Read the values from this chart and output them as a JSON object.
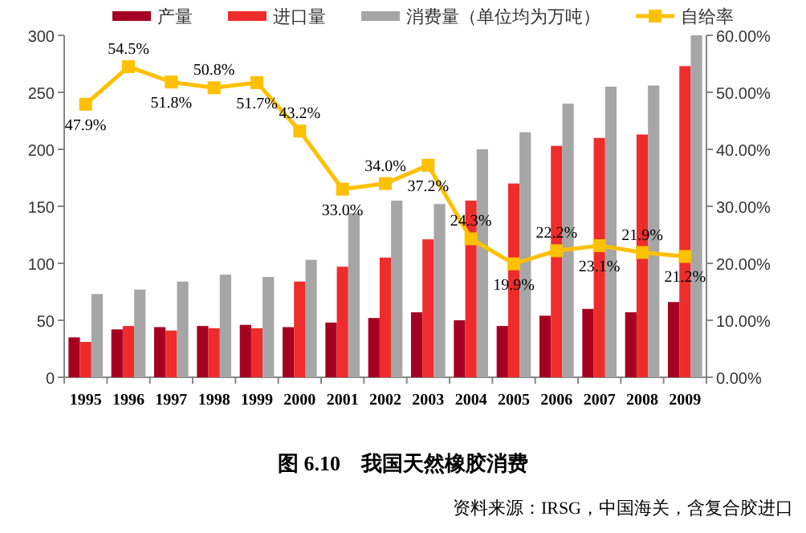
{
  "chart_data": {
    "type": "bar",
    "title": "图 6.10　我国天然橡胶消费",
    "annotations": [
      "资料来源：IRSG，中国海关，含复合胶进口"
    ],
    "categories": [
      "1995",
      "1996",
      "1997",
      "1998",
      "1999",
      "2000",
      "2001",
      "2002",
      "2003",
      "2004",
      "2005",
      "2006",
      "2007",
      "2008",
      "2009"
    ],
    "series": [
      {
        "name": "产量",
        "color": "#a50021",
        "values": [
          35,
          42,
          44,
          45,
          46,
          44,
          48,
          52,
          57,
          50,
          45,
          54,
          60,
          57,
          66
        ]
      },
      {
        "name": "进口量",
        "color": "#ee2c2c",
        "values": [
          31,
          45,
          41,
          43,
          43,
          84,
          97,
          105,
          121,
          155,
          170,
          203,
          210,
          213,
          273
        ]
      },
      {
        "name": "消费量（单位均为万吨）",
        "color": "#a6a6a6",
        "values": [
          73,
          77,
          84,
          90,
          88,
          103,
          144,
          155,
          152,
          200,
          215,
          240,
          255,
          256,
          300
        ]
      },
      {
        "name": "自给率",
        "type": "line",
        "axis": "y2",
        "color": "#ffc000",
        "marker": "square",
        "values": [
          47.9,
          54.5,
          51.8,
          50.8,
          51.7,
          43.2,
          33.0,
          34.0,
          37.2,
          24.3,
          19.9,
          22.2,
          23.1,
          21.9,
          21.2
        ],
        "value_labels": [
          "47.9%",
          "54.5%",
          "51.8%",
          "50.8%",
          "51.7%",
          "43.2%",
          "33.0%",
          "34.0%",
          "37.2%",
          "24.3%",
          "19.9%",
          "22.2%",
          "23.1%",
          "21.9%",
          "21.2%"
        ]
      }
    ],
    "ylim": [
      0,
      300
    ],
    "yticks": [
      0,
      50,
      100,
      150,
      200,
      250,
      300
    ],
    "y2lim": [
      0,
      60
    ],
    "y2ticks": [
      {
        "value": 0,
        "label": "0.00%"
      },
      {
        "value": 10,
        "label": "10.00%"
      },
      {
        "value": 20,
        "label": "20.00%"
      },
      {
        "value": 30,
        "label": "30.00%"
      },
      {
        "value": 40,
        "label": "40.00%"
      },
      {
        "value": 50,
        "label": "50.00%"
      },
      {
        "value": 60,
        "label": "60.00%"
      }
    ],
    "legend": "top"
  }
}
